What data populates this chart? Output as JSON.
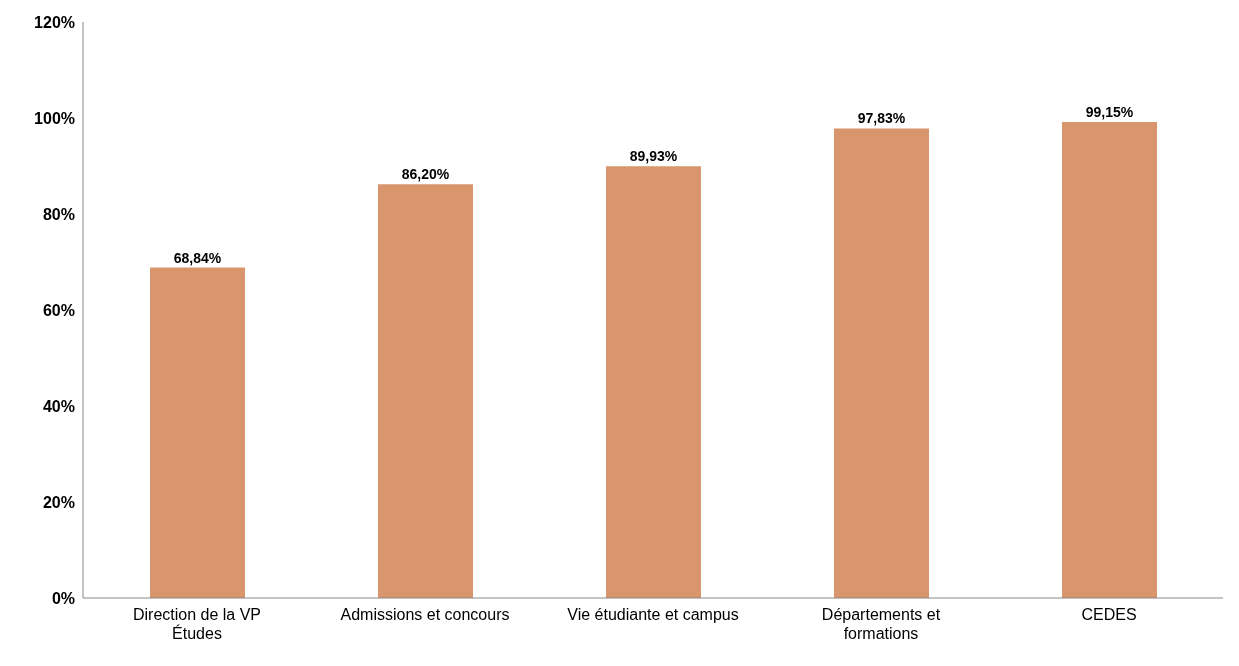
{
  "chart_data": {
    "type": "bar",
    "categories": [
      "Direction de la VP Études",
      "Admissions et concours",
      "Vie étudiante et campus",
      "Départements et formations",
      "CEDES"
    ],
    "values": [
      68.84,
      86.2,
      89.93,
      97.83,
      99.15
    ],
    "value_labels": [
      "68,84%",
      "86,20%",
      "89,93%",
      "97,83%",
      "99,15%"
    ],
    "color": "#d9956b",
    "ylim": [
      0,
      120
    ],
    "yticks": [
      {
        "value": 0,
        "label": "0%"
      },
      {
        "value": 20,
        "label": "20%"
      },
      {
        "value": 40,
        "label": "40%"
      },
      {
        "value": 60,
        "label": "60%"
      },
      {
        "value": 80,
        "label": "80%"
      },
      {
        "value": 100,
        "label": "100%"
      },
      {
        "value": 120,
        "label": "120%"
      }
    ],
    "grid": false,
    "legend": false
  }
}
